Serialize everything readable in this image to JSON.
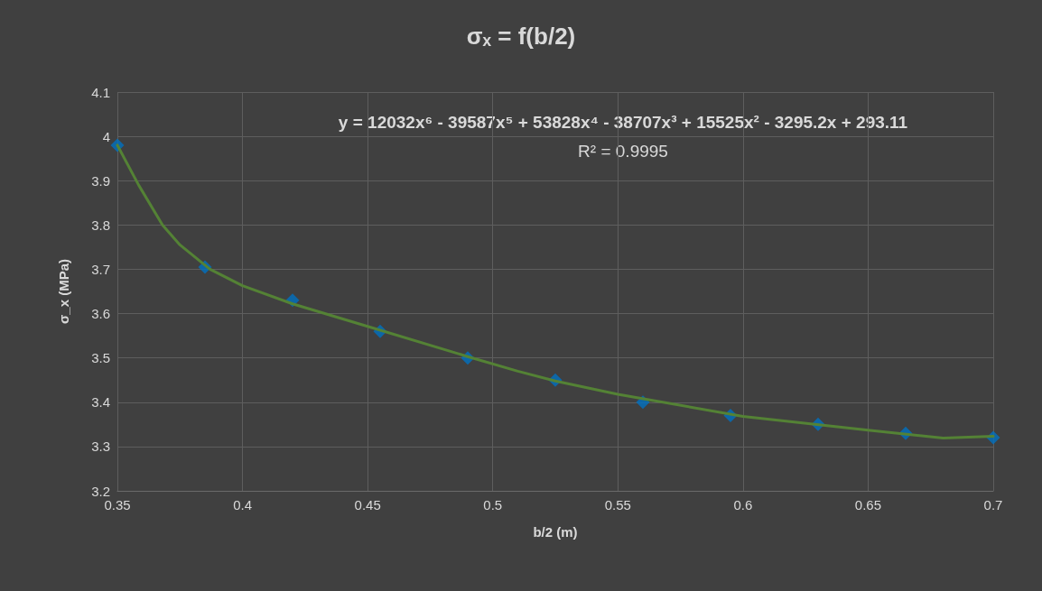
{
  "chart_data": {
    "type": "scatter",
    "title": "σₓ = f(b/2)",
    "xlabel": "b/2 (m)",
    "ylabel": "σ_x (MPa)",
    "annotations": [
      "y = 12032x⁶ - 39587x⁵ + 53828x⁴ - 38707x³ + 15525x² - 3295.2x + 293.11",
      "R² = 0.9995"
    ],
    "series": [
      {
        "type": "scatter",
        "color": "#0070c0",
        "marker": "diamond",
        "x": [
          0.35,
          0.385,
          0.42,
          0.455,
          0.49,
          0.525,
          0.56,
          0.595,
          0.63,
          0.665,
          0.7
        ],
        "values": [
          3.98,
          3.705,
          3.63,
          3.56,
          3.5,
          3.45,
          3.4,
          3.37,
          3.35,
          3.33,
          3.32
        ]
      },
      {
        "type": "line",
        "color": "#548235",
        "marker": "none",
        "x": [
          0.35,
          0.3585,
          0.368,
          0.375,
          0.387,
          0.4,
          0.42,
          0.45,
          0.49,
          0.51,
          0.525,
          0.55,
          0.6,
          0.65,
          0.68,
          0.7
        ],
        "values": [
          3.98,
          3.89,
          3.8,
          3.755,
          3.7,
          3.663,
          3.622,
          3.571,
          3.503,
          3.47,
          3.448,
          3.418,
          3.368,
          3.337,
          3.319,
          3.323
        ]
      }
    ],
    "xlim": [
      0.35,
      0.7
    ],
    "xticks": [
      0.35,
      0.4,
      0.45,
      0.5,
      0.55,
      0.6,
      0.65,
      0.7
    ],
    "ylim": [
      3.2,
      4.1
    ],
    "yticks": [
      3.2,
      3.3,
      3.4,
      3.5,
      3.6,
      3.7,
      3.8,
      3.9,
      4,
      4.1
    ],
    "grid": true
  }
}
